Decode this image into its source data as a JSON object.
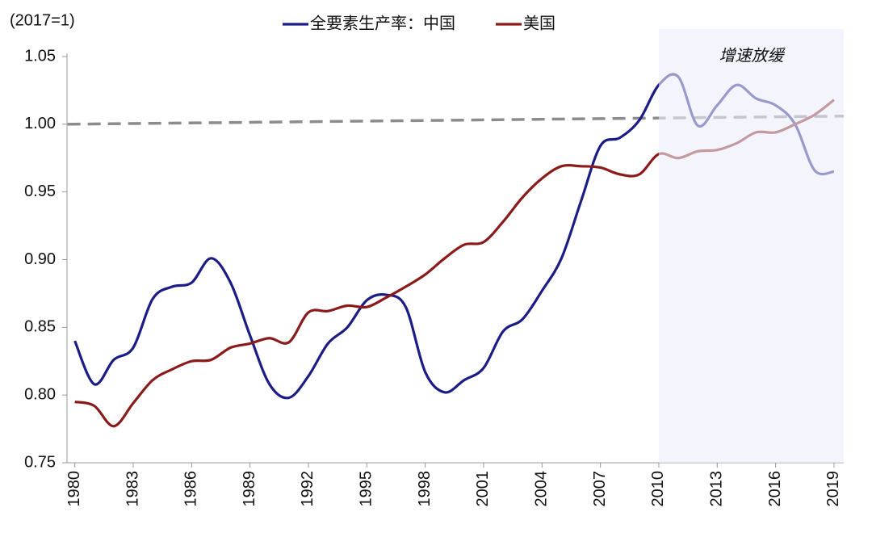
{
  "chart_data": {
    "type": "line",
    "y_label": "(2017=1)",
    "annotation": "增速放缓",
    "shaded_region": {
      "x": [
        2010,
        2019.5
      ],
      "color": "#eceffa"
    },
    "trend_line": {
      "x": [
        1980,
        2019.5
      ],
      "values": [
        1.0,
        1.006
      ],
      "color": "#8c8c8c"
    },
    "x": [
      1980,
      1981,
      1982,
      1983,
      1984,
      1985,
      1986,
      1987,
      1988,
      1989,
      1990,
      1991,
      1992,
      1993,
      1994,
      1995,
      1996,
      1997,
      1998,
      1999,
      2000,
      2001,
      2002,
      2003,
      2004,
      2005,
      2006,
      2007,
      2008,
      2009,
      2010,
      2011,
      2012,
      2013,
      2014,
      2015,
      2016,
      2017,
      2018,
      2019
    ],
    "series": [
      {
        "name": "全要素生产率：中国",
        "color": "#1c1c87",
        "values": [
          0.84,
          0.808,
          0.826,
          0.835,
          0.871,
          0.88,
          0.883,
          0.901,
          0.883,
          0.844,
          0.808,
          0.798,
          0.814,
          0.838,
          0.85,
          0.87,
          0.874,
          0.865,
          0.817,
          0.802,
          0.811,
          0.82,
          0.847,
          0.856,
          0.877,
          0.901,
          0.943,
          0.984,
          0.99,
          1.003,
          1.029,
          1.035,
          0.999,
          1.014,
          1.029,
          1.019,
          1.014,
          1.0,
          0.966,
          0.965
        ]
      },
      {
        "name": "美国",
        "color": "#8b1a1a",
        "values": [
          0.795,
          0.792,
          0.777,
          0.794,
          0.811,
          0.819,
          0.825,
          0.826,
          0.835,
          0.838,
          0.842,
          0.839,
          0.861,
          0.862,
          0.866,
          0.865,
          0.872,
          0.88,
          0.889,
          0.901,
          0.911,
          0.913,
          0.928,
          0.946,
          0.96,
          0.969,
          0.969,
          0.968,
          0.963,
          0.963,
          0.978,
          0.975,
          0.98,
          0.981,
          0.986,
          0.994,
          0.994,
          1.0,
          1.007,
          1.018
        ]
      }
    ],
    "xlim": [
      1979.6,
      2019.5
    ],
    "xticks": [
      1980,
      1983,
      1986,
      1989,
      1992,
      1995,
      1998,
      2001,
      2004,
      2007,
      2010,
      2013,
      2016,
      2019
    ],
    "ylim": [
      0.75,
      1.05
    ],
    "yticks": [
      {
        "value": 0.75,
        "label": "0.75"
      },
      {
        "value": 0.8,
        "label": "0.80"
      },
      {
        "value": 0.85,
        "label": "0.85"
      },
      {
        "value": 0.9,
        "label": "0.90"
      },
      {
        "value": 0.95,
        "label": "0.95"
      },
      {
        "value": 1.0,
        "label": "1.00"
      },
      {
        "value": 1.05,
        "label": "1.05"
      }
    ],
    "legend": "top"
  }
}
